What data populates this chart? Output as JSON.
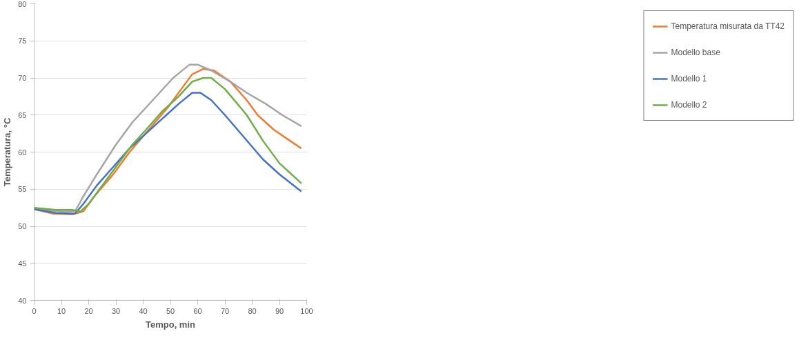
{
  "chart_data": {
    "type": "line",
    "xlabel": "Tempo, min",
    "ylabel": "Temperatura, °C",
    "xlim": [
      0,
      100
    ],
    "ylim": [
      40,
      80
    ],
    "xticks": [
      0,
      10,
      20,
      30,
      40,
      50,
      60,
      70,
      80,
      90,
      100
    ],
    "yticks": [
      40,
      45,
      50,
      55,
      60,
      65,
      70,
      75,
      80
    ],
    "grid": "y",
    "legend": "right",
    "marker": "none",
    "line_style": "solid",
    "series": [
      {
        "name": "Temperatura misurata da TT42",
        "color": "#ed7d31",
        "x": [
          0,
          7,
          14,
          18,
          22,
          29,
          35,
          42,
          49,
          54,
          58,
          62,
          66,
          72,
          78,
          82,
          88,
          94,
          98
        ],
        "values": [
          52.3,
          51.7,
          51.6,
          52,
          54,
          57,
          60,
          63,
          66,
          68.5,
          70.5,
          71.2,
          71,
          69.5,
          67,
          65,
          63,
          61.5,
          60.5
        ]
      },
      {
        "name": "Modello base",
        "color": "#a5a5a5",
        "x": [
          0,
          10,
          15,
          18,
          23,
          30,
          36,
          41,
          46,
          51,
          57,
          60,
          65,
          72,
          78,
          85,
          91,
          98
        ],
        "values": [
          52.3,
          52,
          52,
          54,
          57,
          61,
          64,
          66,
          68,
          70,
          71.8,
          71.8,
          71,
          69.5,
          68,
          66.5,
          65,
          63.5
        ]
      },
      {
        "name": "Modello 1",
        "color": "#4472c4",
        "x": [
          0,
          8,
          15,
          18,
          23,
          29,
          35,
          41,
          47,
          53,
          58,
          61,
          65,
          70,
          77,
          84,
          90,
          98
        ],
        "values": [
          52.3,
          51.8,
          51.7,
          53,
          55.5,
          58,
          60.5,
          62.5,
          64.5,
          66.5,
          68,
          68,
          67,
          65,
          62,
          59,
          57,
          54.7
        ]
      },
      {
        "name": "Modello 2",
        "color": "#70ad47",
        "x": [
          0,
          8,
          14,
          17,
          20,
          24,
          30,
          36,
          41,
          47,
          53,
          58,
          62,
          65,
          70,
          78,
          84,
          90,
          98
        ],
        "values": [
          52.5,
          52.2,
          52.2,
          52,
          53,
          55,
          58,
          61,
          63,
          65.5,
          67.5,
          69.5,
          70,
          70,
          68.5,
          65,
          61.5,
          58.5,
          55.8
        ]
      }
    ]
  }
}
